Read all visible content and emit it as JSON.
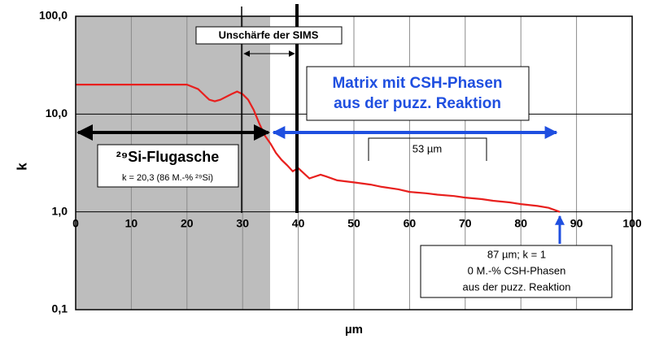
{
  "chart_data": {
    "type": "line",
    "x_label": "µm",
    "y_label": "k",
    "log_y": true,
    "grid": true,
    "xlim": [
      0,
      100
    ],
    "ylim": [
      0.1,
      100
    ],
    "xticks": [
      0,
      10,
      20,
      30,
      40,
      50,
      60,
      70,
      80,
      90,
      100
    ],
    "yticks": [
      {
        "value": 0.1,
        "label": "0,1"
      },
      {
        "value": 1,
        "label": "1,0"
      },
      {
        "value": 10,
        "label": "10,0"
      },
      {
        "value": 100,
        "label": "100,0"
      }
    ],
    "series": [
      {
        "color": "#e8201e",
        "x": [
          0,
          5,
          10,
          15,
          20,
          22,
          24,
          25,
          26,
          28,
          29,
          30,
          31,
          32,
          33,
          34,
          35,
          36,
          37,
          38,
          39,
          40,
          42,
          44,
          45,
          47,
          50,
          53,
          55,
          58,
          60,
          63,
          65,
          68,
          70,
          73,
          75,
          78,
          80,
          83,
          85,
          87
        ],
        "values": [
          20,
          20,
          20,
          20,
          20,
          18,
          14,
          13.5,
          14,
          16,
          17,
          16,
          14,
          11,
          8,
          6,
          5,
          4,
          3.4,
          3,
          2.6,
          2.8,
          2.2,
          2.4,
          2.3,
          2.1,
          2.0,
          1.9,
          1.8,
          1.7,
          1.6,
          1.55,
          1.5,
          1.45,
          1.4,
          1.35,
          1.3,
          1.25,
          1.2,
          1.15,
          1.1,
          1.0
        ]
      }
    ],
    "annotations": {
      "blur": "Unschärfe der SIMS",
      "matrix_1": "Matrix mit CSH-Phasen",
      "matrix_2": "aus der puzz. Reaktion",
      "ash": "²⁹Si-Flugasche",
      "ash_k": "k = 20,3 (86 M.-% ²⁹Si)",
      "width": "53 µm",
      "end_1": "87 µm; k = 1",
      "end_2": "0 M.-% CSH-Phasen",
      "end_3": "aus der puzz. Reaktion"
    }
  }
}
